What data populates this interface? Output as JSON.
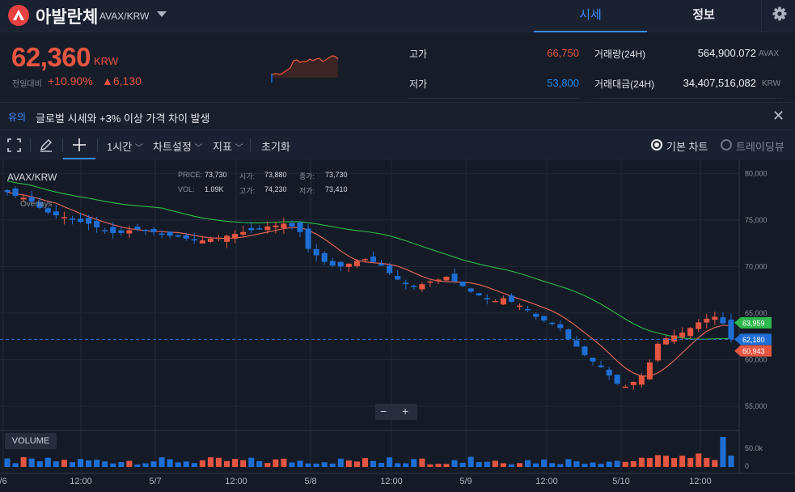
{
  "header": {
    "coin_name": "아발란체",
    "pair": "AVAX/KRW",
    "tabs": [
      "시세",
      "정보"
    ],
    "logo_icon": "avalanche-logo-icon",
    "settings_icon": "gear-icon"
  },
  "summary": {
    "price": "62,360",
    "price_unit": "KRW",
    "change_label": "전일대비",
    "change_rate": "+10.90%",
    "change_amount": "▲6,130",
    "high_label": "고가",
    "high_value": "66,750",
    "low_label": "저가",
    "low_value": "53,800",
    "volume_label": "거래량(24H)",
    "volume_value": "564,900.072",
    "volume_unit": "AVAX",
    "amount_label": "거래대금(24H)",
    "amount_value": "34,407,516,082",
    "amount_unit": "KRW"
  },
  "notice": {
    "tag": "유의",
    "text": "글로벌 시세와 +3% 이상 가격 차이 발생"
  },
  "toolbar": {
    "interval": "1시간",
    "chart_settings": "차트설정",
    "indicators": "지표",
    "reset": "초기화",
    "basic_chart": "기본 차트",
    "trading_view": "트레이딩뷰"
  },
  "chart": {
    "symbol": "AVAX/KRW",
    "overlays_label": "Overlays",
    "ohlc": {
      "price_label": "PRICE:",
      "price": "73,730",
      "open_label": "시가:",
      "open": "73,880",
      "close_label": "종가:",
      "close": "73,730",
      "vol_label": "VOL:",
      "vol": "1.09K",
      "high_label": "고가:",
      "high": "74,230",
      "low_label": "저가:",
      "low": "73,410"
    },
    "volume_label": "VOLUME",
    "volume_ticks": [
      "50.0k",
      "0"
    ],
    "current_price_tag": "62,180",
    "ma_long_tag": "63,959",
    "ma_short_tag": "60,943",
    "zoom_out": "−",
    "zoom_in": "+",
    "colors": {
      "up": "#e55541",
      "down": "#1d6fd6",
      "ma_short": "#e66a5e",
      "ma_long": "#2fb84b"
    }
  },
  "chart_data": {
    "type": "candlestick",
    "y_ticks": [
      "80,000",
      "75,000",
      "70,000",
      "65,000",
      "60,000",
      "55,000"
    ],
    "ylim": [
      53000,
      81500
    ],
    "x_ticks": [
      "/6",
      "12:00",
      "5/7",
      "12:00",
      "5/8",
      "12:00",
      "5/9",
      "12:00",
      "5/10",
      "12:00"
    ],
    "series": [
      {
        "name": "price",
        "values": [
          78000,
          77600,
          77400,
          77000,
          76300,
          75800,
          75500,
          75300,
          75100,
          74800,
          74600,
          74200,
          73800,
          73600,
          73600,
          73900,
          74000,
          73900,
          73700,
          73500,
          73300,
          73200,
          73000,
          72800,
          72800,
          73000,
          73100,
          73300,
          73500,
          73700,
          73900,
          74100,
          74300,
          74400,
          74600,
          74300,
          73700,
          71900,
          71200,
          70500,
          70100,
          70000,
          70300,
          70600,
          70800,
          70500,
          70100,
          69300,
          68600,
          68100,
          67900,
          68100,
          68400,
          68600,
          68900,
          68400,
          67900,
          67300,
          66900,
          66500,
          66300,
          66600,
          66200,
          65800,
          65300,
          64600,
          64200,
          63900,
          63400,
          62200,
          61400,
          60500,
          59800,
          59200,
          58300,
          57400,
          57100,
          57600,
          58300,
          59700,
          61700,
          62300,
          62600,
          62900,
          63400,
          64000,
          64400,
          64600,
          63900,
          62180
        ]
      }
    ]
  }
}
